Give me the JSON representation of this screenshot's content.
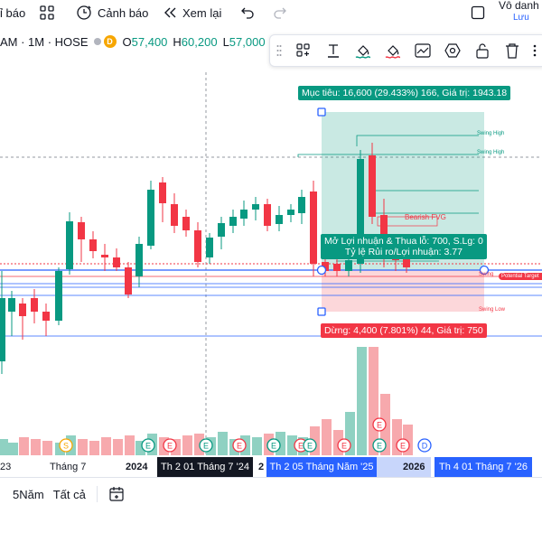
{
  "toolbar": {
    "alert_partial": "ỉ báo",
    "alert_label": "Cảnh báo",
    "replay_label": "Xem lại",
    "unnamed_label": "Vô danh",
    "save_label": "Lưu"
  },
  "symbol": {
    "name_partial": "AM · 1M · HOSE",
    "badge": "D",
    "open_label": "O",
    "open": "57,400",
    "high_label": "H",
    "high": "60,200",
    "low_label": "L",
    "low": "57,000",
    "change_color": "#089981"
  },
  "position_tool": {
    "target_label": "Mục tiêu: 16,600 (29.433%) 166, Giá trị: 1943.18",
    "pnl_label": "Mở Lợi nhuận & Thua lỗ: 700, S.Lg: 0",
    "ratio_label": "Tỷ lệ Rủi ro/Lợi nhuận: 3.77",
    "stop_label": "Dừng: 4,400 (7.801%) 44, Giá trị: 750",
    "profit_color": "#089981",
    "loss_color": "#f23645"
  },
  "annotations": {
    "swing_high_1": "Swing High",
    "swing_high_2": "Swing High",
    "bearish_fvg": "Bearish FVG",
    "swing_low": "Swing Low",
    "potential_target": "Potential Target",
    "swing_partial": "Swing"
  },
  "xaxis": {
    "labels": [
      "23",
      "Tháng 7",
      "2024",
      "2",
      "2026"
    ],
    "highlight_1": "Th 2 01 Tháng 7 '24",
    "highlight_2": "Th 2 05 Tháng Năm '25",
    "highlight_3": "Th 4 01 Tháng 7 '26"
  },
  "range": {
    "five_years": "5Năm",
    "all": "Tất cả"
  },
  "colors": {
    "up": "#089981",
    "down": "#f23645",
    "blue_line": "#2962ff"
  },
  "chart_data": {
    "type": "candlestick",
    "interval": "1M",
    "exchange": "HOSE",
    "current_candle": {
      "open": 57400,
      "high": 60200,
      "low": 57000
    },
    "position": {
      "target": 16600,
      "target_pct": 29.433,
      "stop": 4400,
      "stop_pct": 7.801,
      "risk_reward": 3.77
    },
    "volume_event_markers": [
      "S",
      "E",
      "E",
      "E",
      "E",
      "E",
      "E",
      "E",
      "E",
      "E",
      "E",
      "D",
      "E",
      "E"
    ]
  }
}
